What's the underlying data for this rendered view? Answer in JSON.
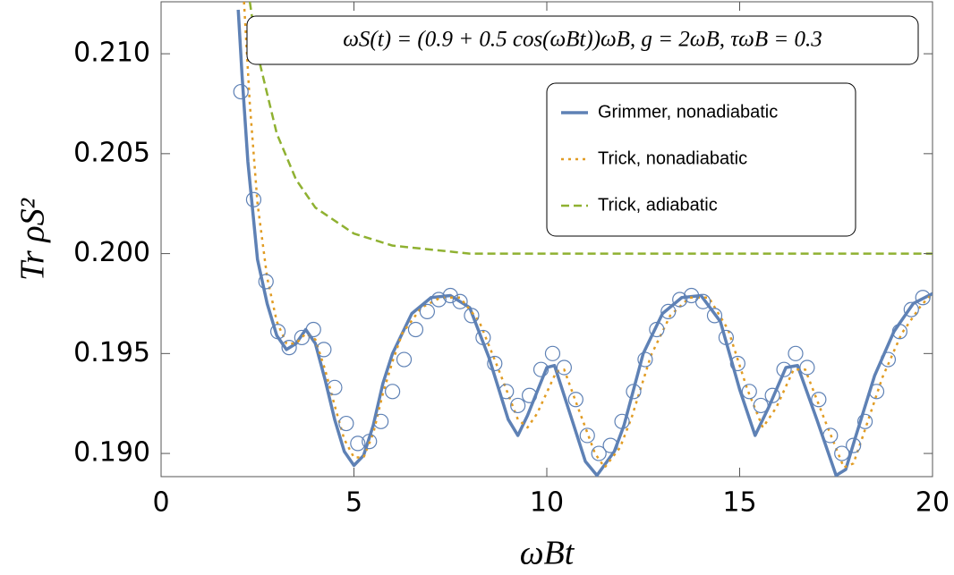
{
  "chart_data": {
    "type": "line",
    "annotation": "ωS(t) = (0.9 + 0.5 cos(ωBt))ωB,    g = 2ωB,    τωB = 0.3",
    "x_label": "ωBt",
    "y_label": "Tr ρS²",
    "xlim": [
      0,
      20
    ],
    "ylim": [
      0.18884,
      0.2126
    ],
    "xticks": [
      0,
      5,
      10,
      15,
      20
    ],
    "yticks": [
      {
        "value": 0.19,
        "label": "0.190"
      },
      0.195,
      {
        "value": 0.2,
        "label": "0.200"
      },
      0.205,
      {
        "value": 0.21,
        "label": "0.210"
      }
    ],
    "legend": "upper right",
    "series": [
      {
        "name": "Grimmer, nonadiabatic",
        "color": "#5e81b5",
        "dash": "solid",
        "x": [
          2.0,
          2.1,
          2.25,
          2.5,
          2.75,
          3.0,
          3.25,
          3.5,
          3.75,
          4.0,
          4.25,
          4.5,
          4.75,
          5.0,
          5.25,
          5.5,
          5.75,
          6.0,
          6.5,
          7.0,
          7.5,
          8.0,
          8.5,
          9.0,
          9.25,
          9.5,
          10.0,
          10.2,
          10.5,
          11.0,
          11.3,
          11.75,
          12.0,
          12.5,
          13.0,
          13.5,
          14.0,
          14.5,
          15.0,
          15.4,
          15.75,
          16.2,
          16.5,
          17.0,
          17.5,
          17.75,
          18.0,
          18.5,
          19.0,
          19.5,
          20.0
        ],
        "values": [
          0.2122,
          0.2089,
          0.2046,
          0.1997,
          0.1975,
          0.1959,
          0.1952,
          0.1955,
          0.1962,
          0.1955,
          0.1937,
          0.1917,
          0.1901,
          0.1894,
          0.1899,
          0.1914,
          0.1935,
          0.195,
          0.197,
          0.1978,
          0.1979,
          0.1973,
          0.1948,
          0.1917,
          0.1909,
          0.1919,
          0.1943,
          0.1944,
          0.1926,
          0.1896,
          0.1889,
          0.1901,
          0.1914,
          0.195,
          0.197,
          0.1978,
          0.1979,
          0.1966,
          0.1932,
          0.1909,
          0.1923,
          0.1943,
          0.1944,
          0.1917,
          0.1889,
          0.1892,
          0.1908,
          0.1939,
          0.1961,
          0.1975,
          0.198
        ]
      },
      {
        "name": "Trick, nonadiabatic",
        "color": "#e19c24",
        "dash": "dotted",
        "x": [
          2.15,
          2.3,
          2.5,
          2.75,
          3.0,
          3.25,
          3.5,
          3.75,
          4.0,
          4.25,
          4.5,
          4.75,
          5.0,
          5.25,
          5.5,
          5.75,
          6.0,
          6.25,
          6.75,
          7.25,
          7.75,
          8.25,
          8.75,
          9.25,
          9.5,
          9.75,
          10.25,
          10.45,
          10.75,
          11.25,
          11.5,
          11.9,
          12.2,
          12.7,
          13.2,
          13.7,
          14.2,
          14.7,
          15.2,
          15.6,
          15.95,
          16.4,
          16.7,
          17.2,
          17.7,
          17.95,
          18.2,
          18.7,
          19.2,
          19.7,
          20.0
        ],
        "values": [
          0.2126,
          0.2075,
          0.2025,
          0.1988,
          0.1966,
          0.1955,
          0.1955,
          0.196,
          0.1957,
          0.1942,
          0.1924,
          0.1907,
          0.1898,
          0.1898,
          0.191,
          0.193,
          0.1946,
          0.196,
          0.1973,
          0.1978,
          0.1978,
          0.1966,
          0.1942,
          0.1917,
          0.1913,
          0.192,
          0.1941,
          0.1942,
          0.1926,
          0.19,
          0.1893,
          0.1903,
          0.1918,
          0.1949,
          0.1969,
          0.1978,
          0.1978,
          0.1962,
          0.1932,
          0.1913,
          0.1923,
          0.1942,
          0.1942,
          0.1917,
          0.1893,
          0.1895,
          0.1909,
          0.1938,
          0.196,
          0.1974,
          0.198
        ]
      },
      {
        "name": "Trick, adiabatic",
        "color": "#8fb131",
        "dash": "dashed",
        "x": [
          2.3,
          2.5,
          3.0,
          3.5,
          4.0,
          5.0,
          6.0,
          8.0,
          10.0,
          20.0
        ],
        "values": [
          0.2126,
          0.21,
          0.206,
          0.2037,
          0.2023,
          0.201,
          0.2004,
          0.2,
          0.2,
          0.2
        ]
      },
      {
        "color": "#5e81b5",
        "markers": true,
        "x": [
          2.07,
          2.4,
          2.72,
          3.03,
          3.32,
          3.65,
          3.95,
          4.22,
          4.5,
          4.8,
          5.1,
          5.4,
          5.7,
          6.0,
          6.3,
          6.6,
          6.9,
          7.2,
          7.5,
          7.75,
          8.05,
          8.35,
          8.65,
          8.95,
          9.25,
          9.55,
          9.85,
          10.15,
          10.45,
          10.75,
          11.05,
          11.35,
          11.65,
          11.95,
          12.25,
          12.55,
          12.85,
          13.15,
          13.45,
          13.75,
          14.05,
          14.35,
          14.65,
          14.95,
          15.25,
          15.55,
          15.85,
          16.15,
          16.45,
          16.75,
          17.05,
          17.35,
          17.65,
          17.95,
          18.25,
          18.55,
          18.85,
          19.15,
          19.45,
          19.75
        ],
        "values": [
          0.2081,
          0.2027,
          0.1986,
          0.1961,
          0.1953,
          0.1958,
          0.1962,
          0.1952,
          0.1933,
          0.1915,
          0.1905,
          0.1906,
          0.1916,
          0.1931,
          0.1947,
          0.1962,
          0.1971,
          0.1977,
          0.1979,
          0.1976,
          0.1969,
          0.1958,
          0.1945,
          0.1931,
          0.1924,
          0.1929,
          0.1942,
          0.195,
          0.1943,
          0.1927,
          0.1909,
          0.19,
          0.1904,
          0.1916,
          0.1931,
          0.1947,
          0.1962,
          0.1971,
          0.1977,
          0.1979,
          0.1976,
          0.1969,
          0.1958,
          0.1945,
          0.1931,
          0.1924,
          0.1929,
          0.1942,
          0.195,
          0.1943,
          0.1927,
          0.1909,
          0.19,
          0.1904,
          0.1916,
          0.1931,
          0.1947,
          0.1961,
          0.1972,
          0.1978
        ]
      }
    ]
  }
}
